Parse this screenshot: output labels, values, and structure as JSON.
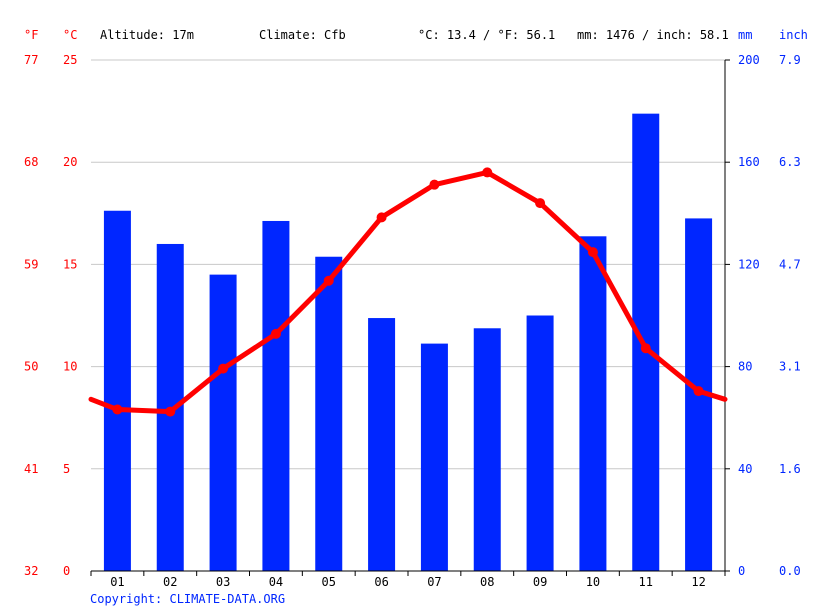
{
  "header": {
    "unit_f": "°F",
    "unit_c": "°C",
    "altitude": "Altitude: 17m",
    "climate": "Climate: Cfb",
    "temp_avg": "°C: 13.4 / °F: 56.1",
    "precip_total": "mm: 1476 / inch: 58.1",
    "unit_mm": "mm",
    "unit_inch": "inch"
  },
  "copyright": "Copyright: CLIMATE-DATA.ORG",
  "colors": {
    "temperature": "#ff0000",
    "precipitation": "#0026ff",
    "grid": "#c8c8c8",
    "text": "#000000"
  },
  "chart_data": {
    "type": "bar",
    "categories": [
      "01",
      "02",
      "03",
      "04",
      "05",
      "06",
      "07",
      "08",
      "09",
      "10",
      "11",
      "12"
    ],
    "series": [
      {
        "type": "bar",
        "axis": "right",
        "values": [
          141,
          128,
          116,
          137,
          123,
          99,
          89,
          95,
          100,
          131,
          179,
          138
        ]
      },
      {
        "type": "line",
        "axis": "left",
        "values": [
          7.9,
          7.8,
          9.9,
          11.6,
          14.2,
          17.3,
          18.9,
          19.5,
          18.0,
          15.6,
          10.9,
          8.8
        ]
      }
    ],
    "left_axis": {
      "ylim": [
        0,
        25
      ],
      "ticks": [
        0,
        5,
        10,
        15,
        20,
        25
      ]
    },
    "left_axis_f": {
      "ticks": [
        "32",
        "41",
        "50",
        "59",
        "68",
        "77"
      ]
    },
    "right_axis": {
      "ylim": [
        0,
        200
      ],
      "ticks": [
        0,
        40,
        80,
        120,
        160,
        200
      ]
    },
    "right_axis_inch": {
      "ticks": [
        "0.0",
        "1.6",
        "3.1",
        "4.7",
        "6.3",
        "7.9"
      ]
    },
    "grid": true,
    "temp_start_end": [
      8.4,
      8.4
    ]
  }
}
